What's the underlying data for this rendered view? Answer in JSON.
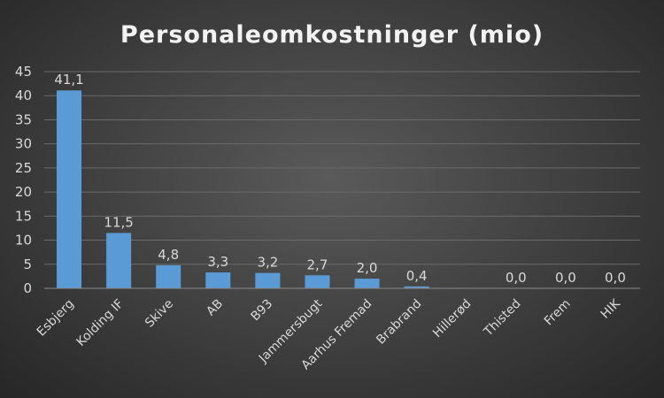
{
  "chart_data": {
    "type": "bar",
    "title": "Personaleomkostninger (mio)",
    "xlabel": "",
    "ylabel": "",
    "ylim": [
      0,
      45
    ],
    "yticks": [
      0,
      5,
      10,
      15,
      20,
      25,
      30,
      35,
      40,
      45
    ],
    "grid": true,
    "legend": "none",
    "categories": [
      "Esbjerg",
      "Kolding IF",
      "Skive",
      "AB",
      "B93",
      "Jammersbugt",
      "Aarhus Fremad",
      "Brabrand",
      "Hillerød",
      "Thisted",
      "Frem",
      "HIK"
    ],
    "values": [
      41.1,
      11.5,
      4.8,
      3.3,
      3.2,
      2.7,
      2.0,
      0.4,
      null,
      0.0,
      0.0,
      0.0
    ],
    "data_labels": [
      "41,1",
      "11,5",
      "4,8",
      "3,3",
      "3,2",
      "2,7",
      "2,0",
      "0,4",
      "",
      "0,0",
      "0,0",
      "0,0"
    ],
    "colors": {
      "bar": "#5b9bd5",
      "text": "#d9d9d9",
      "gridline": "#6a6a6a"
    }
  }
}
